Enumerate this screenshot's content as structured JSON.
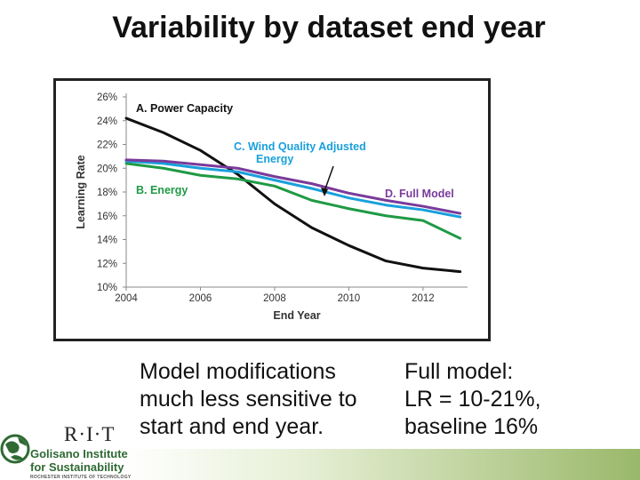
{
  "slide": {
    "title": "Variability by dataset end year",
    "left_text": [
      "Model modifications",
      "much less sensitive to",
      "start and end year."
    ],
    "right_text": [
      "Full model:",
      "LR = 10-21%,",
      "baseline 16%"
    ]
  },
  "logo": {
    "mark": "R·I·T",
    "lines": [
      "Golisano Institute",
      "for Sustainability",
      "ROCHESTER INSTITUTE OF TECHNOLOGY"
    ],
    "colors": {
      "brand_green": "#2f6a33",
      "bar_green": "#9ab86a"
    }
  },
  "chart_data": {
    "type": "line",
    "title": "",
    "xlabel": "End Year",
    "ylabel": "Learning Rate",
    "xlim": [
      2004,
      2013.2
    ],
    "ylim": [
      10,
      26
    ],
    "x_ticks": [
      2004,
      2006,
      2008,
      2010,
      2012
    ],
    "y_ticks": [
      10,
      12,
      14,
      16,
      18,
      20,
      22,
      24,
      26
    ],
    "y_tick_labels": [
      "10%",
      "12%",
      "14%",
      "16%",
      "18%",
      "20%",
      "22%",
      "24%",
      "26%"
    ],
    "grid": false,
    "legend": "inline labels",
    "x": [
      2004,
      2005,
      2006,
      2007,
      2008,
      2009,
      2010,
      2011,
      2012,
      2013
    ],
    "series": [
      {
        "name": "A. Power Capacity",
        "color": "#111111",
        "values": [
          24.2,
          23.0,
          21.5,
          19.5,
          17.0,
          15.0,
          13.5,
          12.2,
          11.6,
          11.3
        ]
      },
      {
        "name": "B. Energy",
        "color": "#1f9a45",
        "values": [
          20.4,
          20.0,
          19.4,
          19.1,
          18.5,
          17.3,
          16.6,
          16.0,
          15.6,
          14.1
        ]
      },
      {
        "name": "C. Wind Quality Adjusted Energy",
        "color": "#19a0dc",
        "values": [
          20.6,
          20.4,
          20.0,
          19.7,
          19.0,
          18.3,
          17.5,
          16.9,
          16.5,
          15.9
        ]
      },
      {
        "name": "D. Full Model",
        "color": "#7a3a9a",
        "values": [
          20.7,
          20.6,
          20.3,
          20.0,
          19.3,
          18.7,
          17.9,
          17.3,
          16.8,
          16.2
        ]
      }
    ],
    "labels": [
      {
        "series": 0,
        "text": "A. Power Capacity"
      },
      {
        "series": 1,
        "text": "B. Energy"
      },
      {
        "series": 2,
        "lines": [
          "C. Wind Quality Adjusted",
          "Energy"
        ]
      },
      {
        "series": 3,
        "text": "D. Full Model"
      }
    ]
  }
}
